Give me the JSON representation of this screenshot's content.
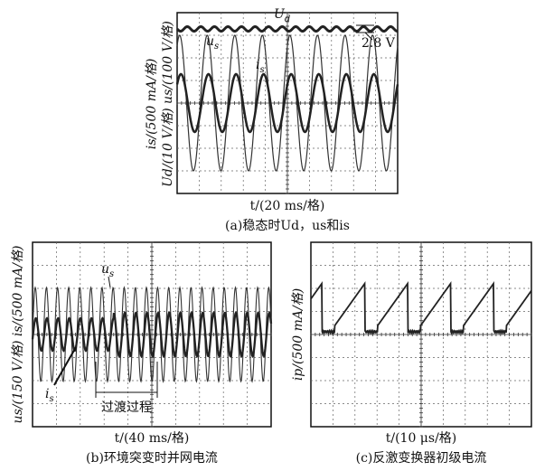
{
  "panel_a": {
    "ud_label": {
      "main": "U",
      "sub": "d"
    },
    "us_label": {
      "main": "u",
      "sub": "s"
    },
    "is_label": {
      "main": "i",
      "sub": "s"
    },
    "ripple": "2.8 V",
    "ylabel_1": "is/(500 mA/格)",
    "ylabel_2": "Ud/(10 V/格) us/(100 V/格)",
    "xlabel": "t/(20 ms/格)",
    "caption": "(a)稳态时Ud，us和is"
  },
  "panel_b": {
    "us_label": {
      "main": "u",
      "sub": "s"
    },
    "is_label": {
      "main": "i",
      "sub": "s"
    },
    "transition": "过渡过程",
    "ylabel": "us/(150 V/格) is/(500 mA/格)",
    "xlabel": "t/(40 ms/格)",
    "caption": "(b)环境突变时并网电流"
  },
  "panel_c": {
    "ylabel": "ip/(500 mA/格)",
    "xlabel": "t/(10 μs/格)",
    "caption": "(c)反激变换器初级电流"
  }
}
